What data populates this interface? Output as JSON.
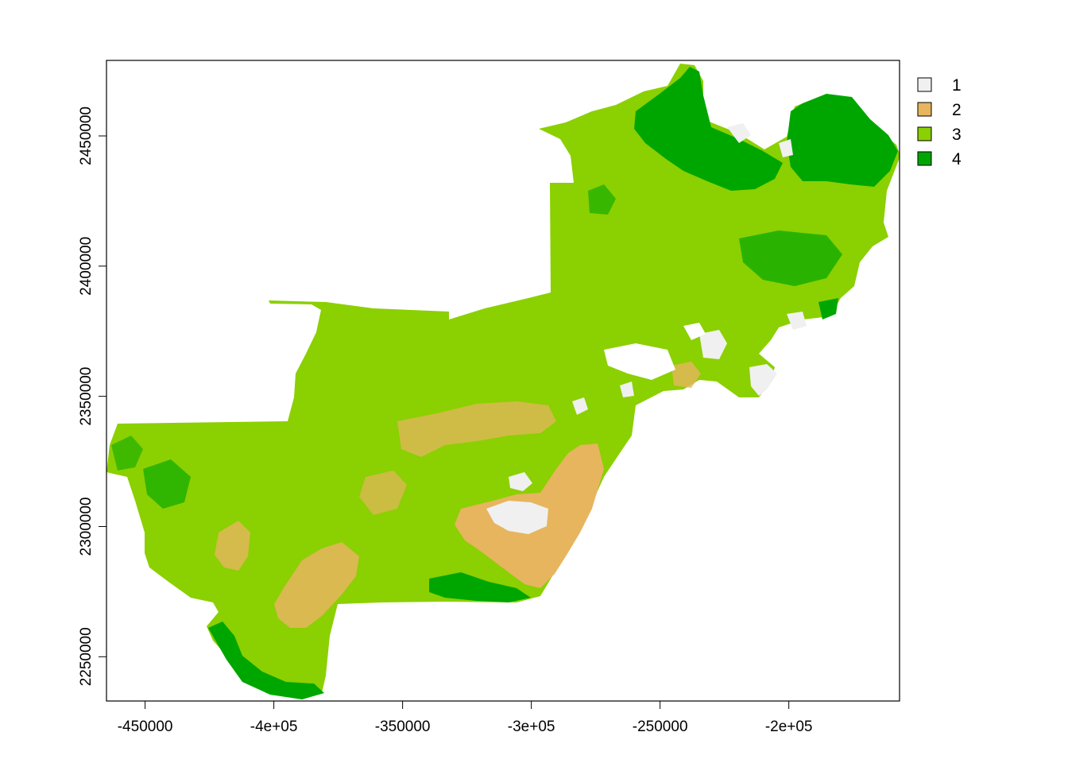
{
  "map": {
    "x_ticks": [
      {
        "value": -450000,
        "label": "-450000"
      },
      {
        "value": -400000,
        "label": "-4e+05"
      },
      {
        "value": -350000,
        "label": "-350000"
      },
      {
        "value": -300000,
        "label": "-3e+05"
      },
      {
        "value": -250000,
        "label": "-250000"
      },
      {
        "value": -200000,
        "label": "-2e+05"
      }
    ],
    "y_ticks": [
      {
        "value": 2250000,
        "label": "2250000"
      },
      {
        "value": 2300000,
        "label": "2300000"
      },
      {
        "value": 2350000,
        "label": "2350000"
      },
      {
        "value": 2400000,
        "label": "2400000"
      },
      {
        "value": 2450000,
        "label": "2450000"
      }
    ],
    "xlim": [
      -465000,
      -157000
    ],
    "ylim": [
      2233000,
      2479000
    ],
    "legend": [
      {
        "label": "1",
        "color": "#f0f0f0"
      },
      {
        "label": "2",
        "color": "#e6b55e"
      },
      {
        "label": "3",
        "color": "#8bd000"
      },
      {
        "label": "4",
        "color": "#00a600"
      }
    ]
  }
}
